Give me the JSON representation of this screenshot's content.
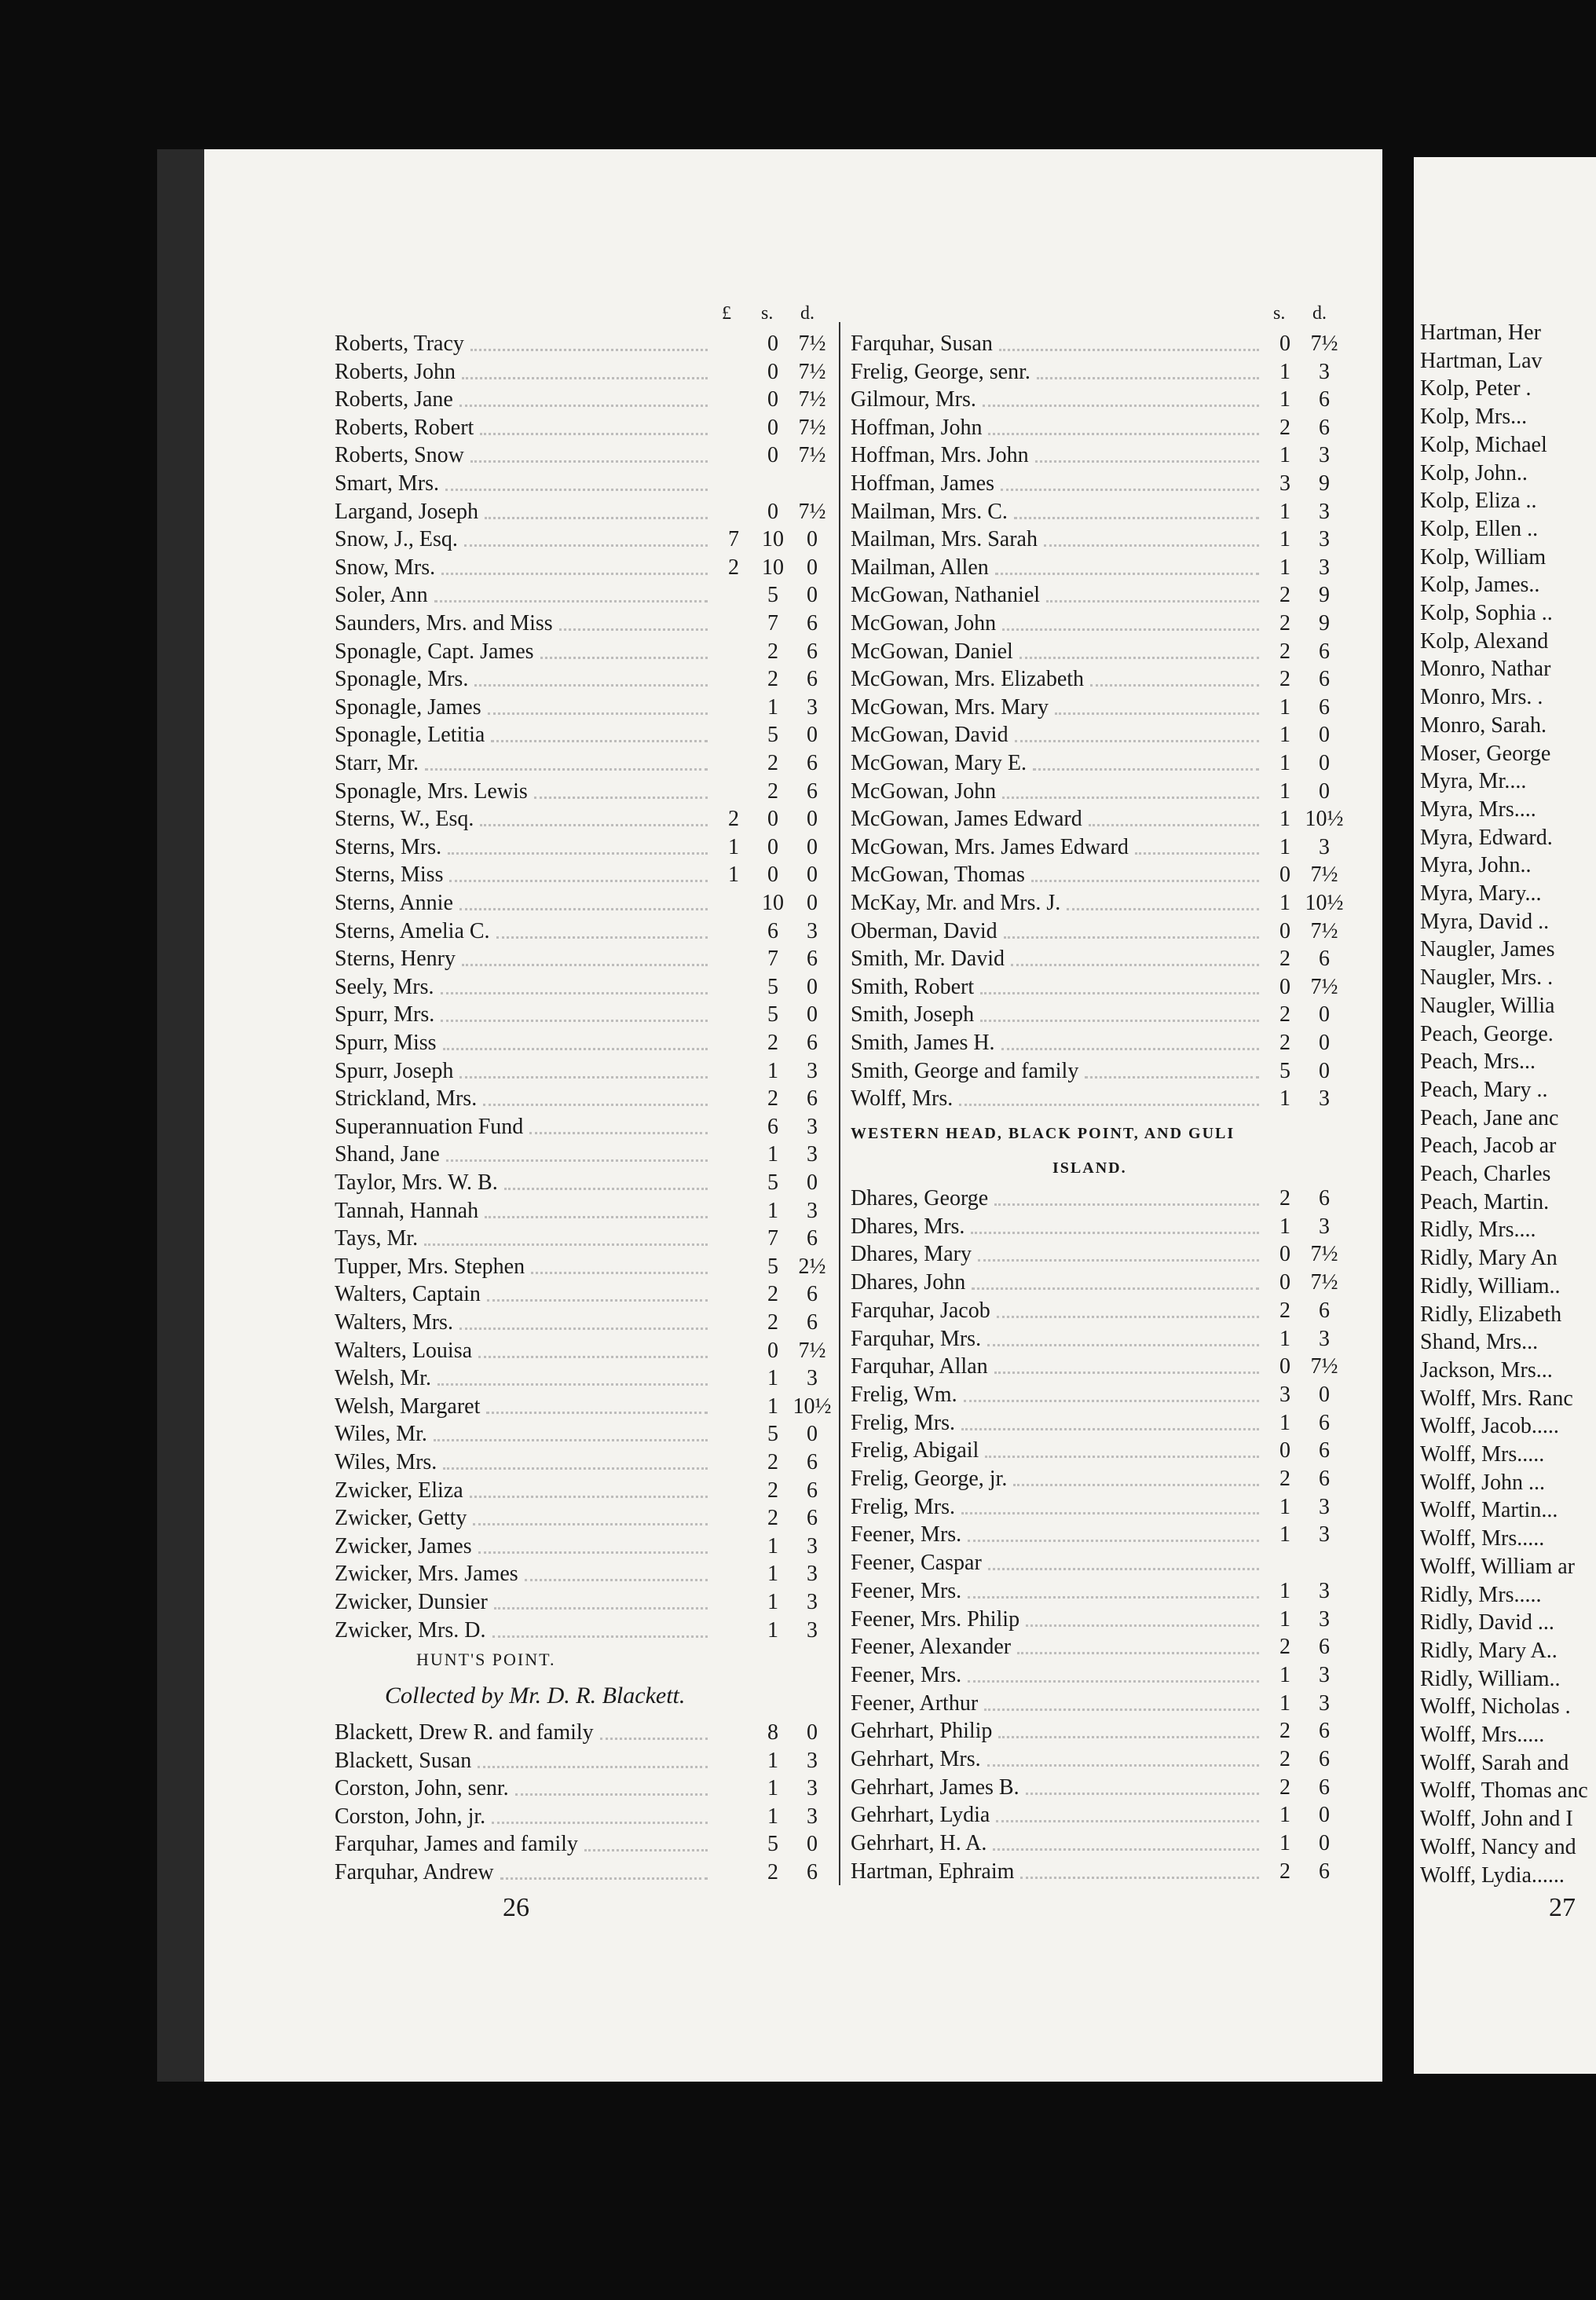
{
  "page_26": {
    "column_heads": [
      "£",
      "s.",
      "d."
    ],
    "entries": [
      {
        "name": "Roberts, Tracy",
        "s": "0",
        "d": "7½"
      },
      {
        "name": "Roberts, John",
        "s": "0",
        "d": "7½"
      },
      {
        "name": "Roberts, Jane",
        "s": "0",
        "d": "7½"
      },
      {
        "name": "Roberts, Robert",
        "s": "0",
        "d": "7½"
      },
      {
        "name": "Roberts, Snow",
        "s": "0",
        "d": "7½"
      },
      {
        "name": "Smart, Mrs."
      },
      {
        "name": "Largand, Joseph",
        "s": "0",
        "d": "7½"
      },
      {
        "name": "Snow, J., Esq.",
        "pounds": "7",
        "s": "10",
        "d": "0"
      },
      {
        "name": "Snow, Mrs.",
        "pounds": "2",
        "s": "10",
        "d": "0"
      },
      {
        "name": "Soler, Ann",
        "s": "5",
        "d": "0"
      },
      {
        "name": "Saunders, Mrs. and Miss",
        "s": "7",
        "d": "6"
      },
      {
        "name": "Sponagle, Capt. James",
        "s": "2",
        "d": "6"
      },
      {
        "name": "Sponagle, Mrs.",
        "s": "2",
        "d": "6"
      },
      {
        "name": "Sponagle, James",
        "s": "1",
        "d": "3"
      },
      {
        "name": "Sponagle, Letitia",
        "s": "5",
        "d": "0"
      },
      {
        "name": "Starr, Mr.",
        "s": "2",
        "d": "6"
      },
      {
        "name": "Sponagle, Mrs. Lewis",
        "s": "2",
        "d": "6"
      },
      {
        "name": "Sterns, W., Esq.",
        "pounds": "2",
        "s": "0",
        "d": "0"
      },
      {
        "name": "Sterns, Mrs.",
        "pounds": "1",
        "s": "0",
        "d": "0"
      },
      {
        "name": "Sterns, Miss",
        "pounds": "1",
        "s": "0",
        "d": "0"
      },
      {
        "name": "Sterns, Annie",
        "s": "10",
        "d": "0"
      },
      {
        "name": "Sterns, Amelia C.",
        "s": "6",
        "d": "3"
      },
      {
        "name": "Sterns, Henry",
        "s": "7",
        "d": "6"
      },
      {
        "name": "Seely, Mrs.",
        "s": "5",
        "d": "0"
      },
      {
        "name": "Spurr, Mrs.",
        "s": "5",
        "d": "0"
      },
      {
        "name": "Spurr, Miss",
        "s": "2",
        "d": "6"
      },
      {
        "name": "Spurr, Joseph",
        "s": "1",
        "d": "3"
      },
      {
        "name": "Strickland, Mrs.",
        "s": "2",
        "d": "6"
      },
      {
        "name": "Superannuation Fund",
        "s": "6",
        "d": "3"
      },
      {
        "name": "Shand, Jane",
        "s": "1",
        "d": "3"
      },
      {
        "name": "Taylor, Mrs. W. B.",
        "s": "5",
        "d": "0"
      },
      {
        "name": "Tannah, Hannah",
        "s": "1",
        "d": "3"
      },
      {
        "name": "Tays, Mr.",
        "s": "7",
        "d": "6"
      },
      {
        "name": "Tupper, Mrs. Stephen",
        "s": "5",
        "d": "2½"
      },
      {
        "name": "Walters, Captain",
        "s": "2",
        "d": "6"
      },
      {
        "name": "Walters, Mrs.",
        "s": "2",
        "d": "6"
      },
      {
        "name": "Walters, Louisa",
        "s": "0",
        "d": "7½"
      },
      {
        "name": "Welsh, Mr.",
        "s": "1",
        "d": "3"
      },
      {
        "name": "Welsh, Margaret",
        "s": "1",
        "d": "10½"
      },
      {
        "name": "Wiles, Mr.",
        "s": "5",
        "d": "0"
      },
      {
        "name": "Wiles, Mrs.",
        "s": "2",
        "d": "6"
      },
      {
        "name": "Zwicker, Eliza",
        "s": "2",
        "d": "6"
      },
      {
        "name": "Zwicker, Getty",
        "s": "2",
        "d": "6"
      },
      {
        "name": "Zwicker, James",
        "s": "1",
        "d": "3"
      },
      {
        "name": "Zwicker, Mrs. James",
        "s": "1",
        "d": "3"
      },
      {
        "name": "Zwicker, Dunsier",
        "s": "1",
        "d": "3"
      },
      {
        "name": "Zwicker, Mrs. D.",
        "s": "1",
        "d": "3"
      }
    ],
    "section": {
      "heading": "HUNT'S POINT.",
      "subheading": "Collected by Mr. D. R. Blackett.",
      "entries": [
        {
          "name": "Blackett, Drew R. and family",
          "s": "8",
          "d": "0"
        },
        {
          "name": "Blackett, Susan",
          "s": "1",
          "d": "3"
        },
        {
          "name": "Corston, John, senr.",
          "s": "1",
          "d": "3"
        },
        {
          "name": "Corston, John, jr.",
          "s": "1",
          "d": "3"
        },
        {
          "name": "Farquhar, James and family",
          "s": "5",
          "d": "0"
        },
        {
          "name": "Farquhar, Andrew",
          "s": "2",
          "d": "6"
        }
      ]
    },
    "page_number": "26"
  },
  "page_26_second_column": {
    "column_heads": [
      "s.",
      "d."
    ],
    "entries": [
      {
        "name": "Farquhar, Susan",
        "s": "0",
        "d": "7½"
      },
      {
        "name": "Frelig, George, senr.",
        "s": "1",
        "d": "3"
      },
      {
        "name": "Gilmour, Mrs.",
        "s": "1",
        "d": "6"
      },
      {
        "name": "Hoffman, John",
        "s": "2",
        "d": "6"
      },
      {
        "name": "Hoffman, Mrs. John",
        "s": "1",
        "d": "3"
      },
      {
        "name": "Hoffman, James",
        "s": "3",
        "d": "9"
      },
      {
        "name": "Mailman, Mrs. C.",
        "s": "1",
        "d": "3"
      },
      {
        "name": "Mailman, Mrs. Sarah",
        "s": "1",
        "d": "3"
      },
      {
        "name": "Mailman, Allen",
        "s": "1",
        "d": "3"
      },
      {
        "name": "McGowan, Nathaniel",
        "s": "2",
        "d": "9"
      },
      {
        "name": "McGowan, John",
        "s": "2",
        "d": "9"
      },
      {
        "name": "McGowan, Daniel",
        "s": "2",
        "d": "6"
      },
      {
        "name": "McGowan, Mrs. Elizabeth",
        "s": "2",
        "d": "6"
      },
      {
        "name": "McGowan, Mrs. Mary",
        "s": "1",
        "d": "6"
      },
      {
        "name": "McGowan, David",
        "s": "1",
        "d": "0"
      },
      {
        "name": "McGowan, Mary E.",
        "s": "1",
        "d": "0"
      },
      {
        "name": "McGowan, John",
        "s": "1",
        "d": "0"
      },
      {
        "name": "McGowan, James Edward",
        "s": "1",
        "d": "10½"
      },
      {
        "name": "McGowan, Mrs. James Edward",
        "s": "1",
        "d": "3"
      },
      {
        "name": "McGowan, Thomas",
        "s": "0",
        "d": "7½"
      },
      {
        "name": "McKay, Mr. and Mrs. J.",
        "s": "1",
        "d": "10½"
      },
      {
        "name": "Oberman, David",
        "s": "0",
        "d": "7½"
      },
      {
        "name": "Smith, Mr. David",
        "s": "2",
        "d": "6"
      },
      {
        "name": "Smith, Robert",
        "s": "0",
        "d": "7½"
      },
      {
        "name": "Smith, Joseph",
        "s": "2",
        "d": "0"
      },
      {
        "name": "Smith, James H.",
        "s": "2",
        "d": "0"
      },
      {
        "name": "Smith, George and family",
        "s": "5",
        "d": "0"
      },
      {
        "name": "Wolff, Mrs.",
        "s": "1",
        "d": "3"
      }
    ],
    "section": {
      "heading_lines": [
        "WESTERN HEAD, BLACK POINT, AND GULI",
        "ISLAND."
      ],
      "entries": [
        {
          "name": "Dhares, George",
          "s": "2",
          "d": "6"
        },
        {
          "name": "Dhares, Mrs.",
          "s": "1",
          "d": "3"
        },
        {
          "name": "Dhares, Mary",
          "s": "0",
          "d": "7½"
        },
        {
          "name": "Dhares, John",
          "s": "0",
          "d": "7½"
        },
        {
          "name": "Farquhar, Jacob",
          "s": "2",
          "d": "6"
        },
        {
          "name": "Farquhar, Mrs.",
          "s": "1",
          "d": "3"
        },
        {
          "name": "Farquhar, Allan",
          "s": "0",
          "d": "7½"
        },
        {
          "name": "Frelig, Wm.",
          "s": "3",
          "d": "0"
        },
        {
          "name": "Frelig, Mrs.",
          "s": "1",
          "d": "6"
        },
        {
          "name": "Frelig, Abigail",
          "s": "0",
          "d": "6"
        },
        {
          "name": "Frelig, George, jr.",
          "s": "2",
          "d": "6"
        },
        {
          "name": "Frelig, Mrs.",
          "s": "1",
          "d": "3"
        },
        {
          "name": "Feener, Mrs.",
          "s": "1",
          "d": "3"
        },
        {
          "name": "Feener, Caspar"
        },
        {
          "name": "Feener, Mrs.",
          "s": "1",
          "d": "3"
        },
        {
          "name": "Feener, Mrs. Philip",
          "s": "1",
          "d": "3"
        },
        {
          "name": "Feener, Alexander",
          "s": "2",
          "d": "6"
        },
        {
          "name": "Feener, Mrs.",
          "s": "1",
          "d": "3"
        },
        {
          "name": "Feener, Arthur",
          "s": "1",
          "d": "3"
        },
        {
          "name": "Gehrhart, Philip",
          "s": "2",
          "d": "6"
        },
        {
          "name": "Gehrhart, Mrs.",
          "s": "2",
          "d": "6"
        },
        {
          "name": "Gehrhart, James B.",
          "s": "2",
          "d": "6"
        },
        {
          "name": "Gehrhart, Lydia",
          "s": "1",
          "d": "0"
        },
        {
          "name": "Gehrhart, H. A.",
          "s": "1",
          "d": "0"
        },
        {
          "name": "Hartman, Ephraim",
          "s": "2",
          "d": "6"
        }
      ]
    }
  },
  "page_27": {
    "entries": [
      "Hartman, Her",
      "Hartman, Lav",
      "Kolp, Peter .",
      "Kolp, Mrs...",
      "Kolp, Michael",
      "Kolp, John..",
      "Kolp, Eliza ..",
      "Kolp, Ellen ..",
      "Kolp, William",
      "Kolp, James..",
      "Kolp, Sophia ..",
      "Kolp, Alexand",
      "Monro, Nathar",
      "Monro, Mrs. .",
      "Monro, Sarah.",
      "Moser, George",
      "Myra, Mr....",
      "Myra, Mrs....",
      "Myra, Edward.",
      "Myra, John..",
      "Myra, Mary...",
      "Myra, David ..",
      "Naugler, James",
      "Naugler, Mrs. .",
      "Naugler, Willia",
      "Peach, George.",
      "Peach, Mrs...",
      "Peach, Mary ..",
      "Peach, Jane anc",
      "Peach, Jacob ar",
      "Peach, Charles",
      "Peach, Martin.",
      "Ridly, Mrs....",
      "Ridly, Mary An",
      "Ridly, William..",
      "Ridly, Elizabeth",
      "Shand, Mrs...",
      "Jackson, Mrs...",
      "Wolff, Mrs. Ranc",
      "Wolff, Jacob.....",
      "Wolff, Mrs.....",
      "Wolff, John ...",
      "Wolff, Martin...",
      "Wolff, Mrs.....",
      "Wolff, William ar",
      "Ridly, Mrs.....",
      "Ridly, David ...",
      "Ridly, Mary A..",
      "Ridly, William..",
      "Wolff, Nicholas .",
      "Wolff, Mrs.....",
      "Wolff, Sarah and",
      "Wolff, Thomas anc",
      "Wolff, John and I",
      "Wolff, Nancy and",
      "Wolff, Lydia......"
    ],
    "page_number": "27"
  }
}
